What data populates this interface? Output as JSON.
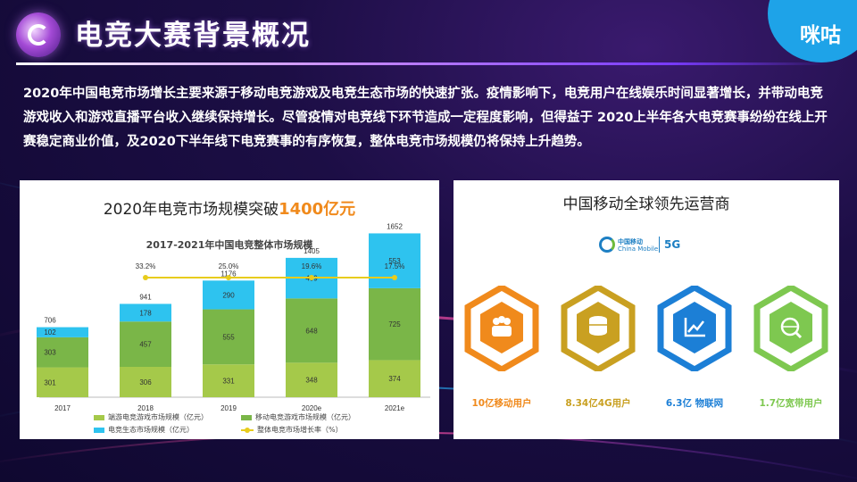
{
  "header": {
    "title": "电竞大赛背景概况",
    "brand": "咪咕"
  },
  "intro": {
    "text": "2020年中国电竞市场增长主要来源于移动电竞游戏及电竞生态市场的快速扩张。疫情影响下，电竞用户在线娱乐时间显著增长，并带动电竞游戏收入和游戏直播平台收入继续保持增长。尽管疫情对电竞线下环节造成一定程度影响，但得益于 2020上半年各大电竞赛事纷纷在线上开赛稳定商业价值，及2020下半年线下电竞赛事的有序恢复，整体电竞市场规模仍将保持上升趋势。"
  },
  "left_panel": {
    "heading_prefix": "2020年电竞市场规模突破",
    "heading_highlight": "1400亿元"
  },
  "right_panel": {
    "heading": "中国移动全球领先运营商",
    "logo_cn": "中国移动",
    "logo_en": "China Mobile",
    "logo_5g": "5G",
    "stats": [
      {
        "label": "10亿移动用户",
        "color": "#f08a1c",
        "icon": "users-icon"
      },
      {
        "label": "8.34亿4G用户",
        "color": "#c9a021",
        "icon": "database-icon"
      },
      {
        "label": "6.3亿 物联网",
        "color": "#1c7fd6",
        "icon": "trend-chart-icon"
      },
      {
        "label": "1.7亿宽带用户",
        "color": "#7ec850",
        "icon": "globe-search-icon"
      }
    ]
  },
  "chart_data": {
    "type": "bar",
    "title": "2017-2021年中国电竞整体市场规模",
    "categories": [
      "2017",
      "2018",
      "2019",
      "2020e",
      "2021e"
    ],
    "series": [
      {
        "name": "端游电竞游戏市场规模（亿元）",
        "color": "#a5c94a",
        "values": [
          301,
          306,
          331,
          348,
          374
        ]
      },
      {
        "name": "移动电竞游戏市场规模（亿元）",
        "color": "#7ab648",
        "values": [
          303,
          457,
          555,
          648,
          725
        ]
      },
      {
        "name": "电竞生态市场规模（亿元）",
        "color": "#2ec3ef",
        "values": [
          102,
          178,
          290,
          409,
          553
        ]
      }
    ],
    "totals": [
      706,
      941,
      1176,
      1405,
      1652
    ],
    "growth_series": {
      "name": "整体电竞市场增长率（%）",
      "color": "#e8cc1c",
      "x": [
        "2018",
        "2019",
        "2020e",
        "2021e"
      ],
      "values": [
        33.2,
        25.0,
        19.6,
        17.5
      ],
      "labels": [
        "33.2%",
        "25.0%",
        "19.6%",
        "17.5%"
      ]
    },
    "stacked": true
  }
}
